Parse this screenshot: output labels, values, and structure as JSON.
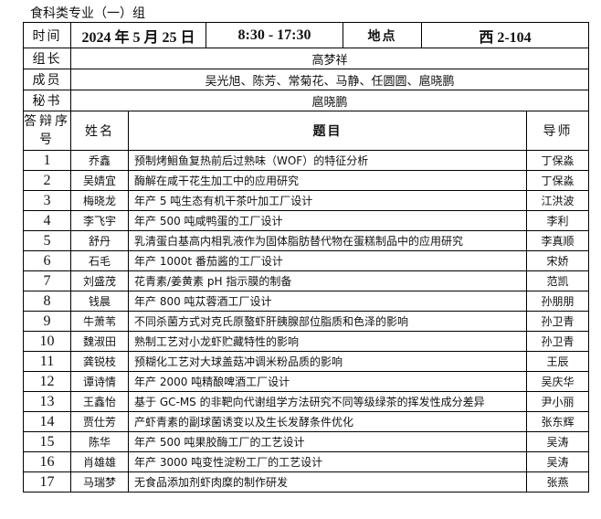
{
  "title": "食科类专业（一）组",
  "info": {
    "time_label": "时间",
    "date": "2024 年 5 月 25 日",
    "hours": "8:30 - 17:30",
    "location_label": "地点",
    "location": "西 2-104",
    "leader_label": "组长",
    "leader": "高梦祥",
    "members_label": "成员",
    "members": "吴光旭、陈芳、常菊花、马静、任圆圆、扈晓鹏",
    "secretary_label": "秘书",
    "secretary": "扈晓鹏"
  },
  "columns": {
    "seq": "答辩序号",
    "name": "姓名",
    "topic": "题目",
    "advisor": "导师"
  },
  "rows": [
    {
      "seq": "1",
      "name": "乔鑫",
      "topic": "预制烤鮰鱼复热前后过熟味（WOF）的特征分析",
      "advisor": "丁保淼"
    },
    {
      "seq": "2",
      "name": "吴婧宜",
      "topic": "酶解在咸干花生加工中的应用研究",
      "advisor": "丁保淼"
    },
    {
      "seq": "3",
      "name": "梅晓龙",
      "topic": "年产 5 吨生态有机干茶叶加工厂设计",
      "advisor": "江洪波"
    },
    {
      "seq": "4",
      "name": "李飞宇",
      "topic": "年产 500 吨咸鸭蛋的工厂设计",
      "advisor": "李利"
    },
    {
      "seq": "5",
      "name": "舒丹",
      "topic": "乳清蛋白基高内相乳液作为固体脂肪替代物在蛋糕制品中的应用研究",
      "advisor": "李真顺"
    },
    {
      "seq": "6",
      "name": "石毛",
      "topic": "年产 1000t 番茄酱的工厂设计",
      "advisor": "宋娇"
    },
    {
      "seq": "7",
      "name": "刘盛茂",
      "topic": "花青素/姜黄素 pH 指示膜的制备",
      "advisor": "范凯"
    },
    {
      "seq": "8",
      "name": "钱晨",
      "topic": "年产 800 吨苁蓉酒工厂设计",
      "advisor": "孙朋朋"
    },
    {
      "seq": "9",
      "name": "牛萧苇",
      "topic": "不同杀菌方式对克氏原螯虾肝胰腺部位脂质和色泽的影响",
      "advisor": "孙卫青"
    },
    {
      "seq": "10",
      "name": "魏淑田",
      "topic": "熟制工艺对小龙虾贮藏特性的影响",
      "advisor": "孙卫青"
    },
    {
      "seq": "11",
      "name": "龚锐枝",
      "topic": "预糊化工艺对大球盖菇冲调米粉品质的影响",
      "advisor": "王辰"
    },
    {
      "seq": "12",
      "name": "谭诗情",
      "topic": "年产 2000 吨精酿啤酒工厂设计",
      "advisor": "吴庆华"
    },
    {
      "seq": "13",
      "name": "王鑫怡",
      "topic": "基于 GC-MS 的非靶向代谢组学方法研究不同等级绿茶的挥发性成分差异",
      "advisor": "尹小丽"
    },
    {
      "seq": "14",
      "name": "贾仕芳",
      "topic": "产虾青素的副球菌诱变以及生长发酵条件优化",
      "advisor": "张东辉"
    },
    {
      "seq": "15",
      "name": "陈华",
      "topic": "年产 500 吨果胶酶工厂的工艺设计",
      "advisor": "吴涛"
    },
    {
      "seq": "16",
      "name": "肖雄雄",
      "topic": "年产 3000 吨变性淀粉工厂的工艺设计",
      "advisor": "吴涛"
    },
    {
      "seq": "17",
      "name": "马瑞梦",
      "topic": "无食品添加剂虾肉糜的制作研发",
      "advisor": "张燕"
    }
  ]
}
